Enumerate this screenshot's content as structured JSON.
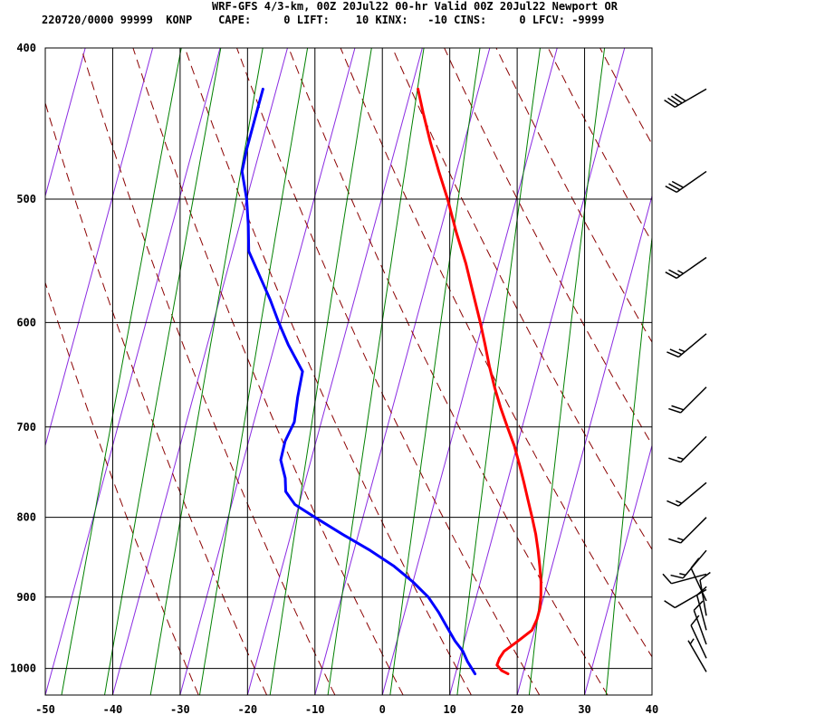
{
  "header": {
    "line1": "WRF-GFS 4/3-km, 00Z 20Jul22 00-hr Valid 00Z 20Jul22 Newport OR",
    "line2": "220720/0000 99999  KONP    CAPE:     0 LIFT:    10 KINX:   -10 CINS:     0 LFCV: -9999"
  },
  "colors": {
    "temperature": "#ff0000",
    "dewpoint": "#0000ff",
    "isotherm": "#8a2be2",
    "dry_adiabat": "#8b0000",
    "mixing_ratio": "#008000",
    "grid": "#000000",
    "wind_barb": "#000000"
  },
  "chart_data": {
    "type": "line",
    "subtype": "skew-T log-p sounding",
    "xlabel": "",
    "ylabel": "",
    "xlim": [
      -50,
      40
    ],
    "ylim_hpa": [
      1040,
      400
    ],
    "x_ticks": [
      -50,
      -40,
      -30,
      -20,
      -10,
      0,
      10,
      20,
      30,
      40
    ],
    "pressure_ticks": [
      400,
      500,
      600,
      700,
      800,
      900,
      1000
    ],
    "grid": true,
    "series": [
      {
        "key": "temperature",
        "points": [
          {
            "p": 1008,
            "t": 17.8
          },
          {
            "p": 1003,
            "t": 16.7
          },
          {
            "p": 995,
            "t": 15.8
          },
          {
            "p": 985,
            "t": 15.9
          },
          {
            "p": 975,
            "t": 16.3
          },
          {
            "p": 960,
            "t": 18.0
          },
          {
            "p": 945,
            "t": 19.6
          },
          {
            "p": 930,
            "t": 19.9
          },
          {
            "p": 915,
            "t": 19.9
          },
          {
            "p": 900,
            "t": 19.6
          },
          {
            "p": 880,
            "t": 19.0
          },
          {
            "p": 860,
            "t": 18.2
          },
          {
            "p": 840,
            "t": 17.3
          },
          {
            "p": 820,
            "t": 16.3
          },
          {
            "p": 800,
            "t": 15.1
          },
          {
            "p": 780,
            "t": 13.8
          },
          {
            "p": 760,
            "t": 12.5
          },
          {
            "p": 740,
            "t": 11.1
          },
          {
            "p": 720,
            "t": 9.6
          },
          {
            "p": 700,
            "t": 7.8
          },
          {
            "p": 680,
            "t": 6.0
          },
          {
            "p": 660,
            "t": 4.3
          },
          {
            "p": 640,
            "t": 2.7
          },
          {
            "p": 620,
            "t": 1.2
          },
          {
            "p": 600,
            "t": -0.4
          },
          {
            "p": 575,
            "t": -2.6
          },
          {
            "p": 550,
            "t": -4.9
          },
          {
            "p": 525,
            "t": -7.6
          },
          {
            "p": 500,
            "t": -10.2
          },
          {
            "p": 480,
            "t": -12.6
          },
          {
            "p": 460,
            "t": -15.0
          },
          {
            "p": 440,
            "t": -17.3
          },
          {
            "p": 425,
            "t": -19.0
          }
        ]
      },
      {
        "key": "dewpoint",
        "points": [
          {
            "p": 1008,
            "t": 12.9
          },
          {
            "p": 1000,
            "t": 12.2
          },
          {
            "p": 990,
            "t": 11.3
          },
          {
            "p": 975,
            "t": 10.2
          },
          {
            "p": 960,
            "t": 8.6
          },
          {
            "p": 940,
            "t": 6.8
          },
          {
            "p": 920,
            "t": 5.0
          },
          {
            "p": 900,
            "t": 2.9
          },
          {
            "p": 880,
            "t": 0.0
          },
          {
            "p": 860,
            "t": -3.4
          },
          {
            "p": 840,
            "t": -7.6
          },
          {
            "p": 820,
            "t": -12.4
          },
          {
            "p": 800,
            "t": -17.1
          },
          {
            "p": 785,
            "t": -20.6
          },
          {
            "p": 770,
            "t": -22.5
          },
          {
            "p": 755,
            "t": -23.1
          },
          {
            "p": 735,
            "t": -24.5
          },
          {
            "p": 715,
            "t": -24.6
          },
          {
            "p": 695,
            "t": -24.0
          },
          {
            "p": 670,
            "t": -24.5
          },
          {
            "p": 645,
            "t": -24.8
          },
          {
            "p": 620,
            "t": -28.0
          },
          {
            "p": 600,
            "t": -30.3
          },
          {
            "p": 580,
            "t": -32.5
          },
          {
            "p": 560,
            "t": -35.0
          },
          {
            "p": 540,
            "t": -37.6
          },
          {
            "p": 520,
            "t": -38.7
          },
          {
            "p": 500,
            "t": -40.0
          },
          {
            "p": 480,
            "t": -41.8
          },
          {
            "p": 465,
            "t": -42.0
          },
          {
            "p": 450,
            "t": -42.0
          },
          {
            "p": 425,
            "t": -42.0
          }
        ]
      }
    ],
    "wind_barbs": [
      {
        "p": 425,
        "dir": 240,
        "kt": 40
      },
      {
        "p": 480,
        "dir": 235,
        "kt": 30
      },
      {
        "p": 545,
        "dir": 235,
        "kt": 25
      },
      {
        "p": 610,
        "dir": 230,
        "kt": 25
      },
      {
        "p": 660,
        "dir": 225,
        "kt": 20
      },
      {
        "p": 710,
        "dir": 225,
        "kt": 15
      },
      {
        "p": 760,
        "dir": 230,
        "kt": 15
      },
      {
        "p": 800,
        "dir": 225,
        "kt": 15
      },
      {
        "p": 840,
        "dir": 220,
        "kt": 15
      },
      {
        "p": 870,
        "dir": 255,
        "kt": 10
      },
      {
        "p": 890,
        "dir": 240,
        "kt": 10
      },
      {
        "p": 905,
        "dir": 335,
        "kt": 10
      },
      {
        "p": 925,
        "dir": 350,
        "kt": 10
      },
      {
        "p": 945,
        "dir": 345,
        "kt": 10
      },
      {
        "p": 965,
        "dir": 340,
        "kt": 10
      },
      {
        "p": 985,
        "dir": 335,
        "kt": 10
      },
      {
        "p": 1005,
        "dir": 330,
        "kt": 5
      }
    ]
  }
}
